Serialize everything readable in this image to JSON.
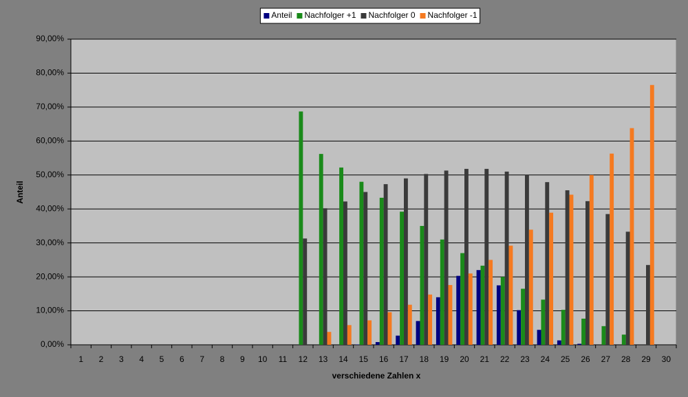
{
  "chart_data": {
    "type": "bar",
    "x_label": "verschiedene Zahlen x",
    "y_label": "Anteil",
    "categories": [
      "1",
      "2",
      "3",
      "4",
      "5",
      "6",
      "7",
      "8",
      "9",
      "10",
      "11",
      "12",
      "13",
      "14",
      "15",
      "16",
      "17",
      "18",
      "19",
      "20",
      "21",
      "22",
      "23",
      "24",
      "25",
      "26",
      "27",
      "28",
      "29",
      "30"
    ],
    "series": [
      {
        "name": "Anteil",
        "color": "#000080",
        "values": [
          0,
          0,
          0,
          0,
          0,
          0,
          0,
          0,
          0,
          0,
          0,
          0,
          0,
          0,
          0.1,
          0.8,
          2.7,
          7.0,
          14.0,
          20.3,
          22.0,
          17.5,
          10.2,
          4.4,
          1.3,
          0.3,
          0,
          0,
          0,
          0
        ]
      },
      {
        "name": "Nachfolger +1",
        "color": "#1a8a1a",
        "values": [
          0,
          0,
          0,
          0,
          0,
          0,
          0,
          0,
          0,
          0,
          0,
          68.7,
          56.2,
          52.2,
          48.0,
          43.3,
          39.2,
          35.0,
          31.0,
          27.0,
          23.3,
          20.0,
          16.5,
          13.3,
          10.3,
          7.7,
          5.5,
          3.0,
          0,
          0
        ]
      },
      {
        "name": "Nachfolger 0",
        "color": "#3a3a3a",
        "values": [
          0,
          0,
          0,
          0,
          0,
          0,
          0,
          0,
          0,
          0,
          0,
          31.3,
          40.2,
          42.2,
          45.0,
          47.3,
          49.0,
          50.3,
          51.3,
          51.8,
          51.8,
          51.0,
          50.0,
          47.9,
          45.5,
          42.3,
          38.5,
          33.3,
          23.5,
          0
        ]
      },
      {
        "name": "Nachfolger -1",
        "color": "#f57a20",
        "values": [
          0,
          0,
          0,
          0,
          0,
          0,
          0,
          0,
          0,
          0,
          0,
          0,
          3.8,
          5.8,
          7.2,
          9.6,
          11.8,
          14.8,
          17.6,
          21.0,
          25.0,
          29.2,
          33.9,
          38.9,
          44.2,
          50.0,
          56.3,
          63.8,
          76.5,
          0
        ]
      }
    ],
    "ylim": [
      0,
      90
    ],
    "yticks": [
      {
        "value": 0,
        "label": "0,00%"
      },
      {
        "value": 10,
        "label": "10,00%"
      },
      {
        "value": 20,
        "label": "20,00%"
      },
      {
        "value": 30,
        "label": "30,00%"
      },
      {
        "value": 40,
        "label": "40,00%"
      },
      {
        "value": 50,
        "label": "50,00%"
      },
      {
        "value": 60,
        "label": "60,00%"
      },
      {
        "value": 70,
        "label": "70,00%"
      },
      {
        "value": 80,
        "label": "80,00%"
      },
      {
        "value": 90,
        "label": "90,00%"
      }
    ],
    "grid": true,
    "legend_position": "top"
  }
}
